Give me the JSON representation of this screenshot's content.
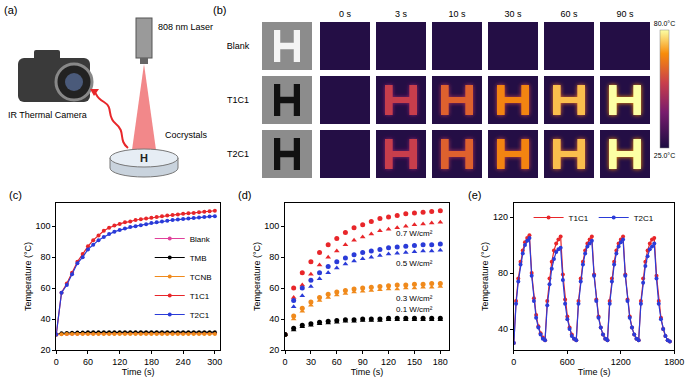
{
  "schematic": {
    "label": "(a)",
    "laser": "808 nm Laser",
    "camera": "IR Thermal Camera",
    "sample": "Cocrystals",
    "letter": "H"
  },
  "thermal_images": {
    "label": "(b)",
    "rows": [
      "Blank",
      "T1C1",
      "T2C1"
    ],
    "times": [
      "0 s",
      "3 s",
      "10 s",
      "30 s",
      "60 s",
      "90 s"
    ],
    "colorbar_labels": [
      "80.0°C",
      "25.0°C"
    ]
  },
  "chart_data": [
    {
      "type": "line",
      "title": "(c)",
      "x_label": "Time (s)",
      "y_label": "Temperature (°C)",
      "x": [
        0,
        10,
        20,
        30,
        40,
        50,
        60,
        70,
        80,
        90,
        100,
        110,
        120,
        130,
        140,
        150,
        160,
        170,
        180,
        190,
        200,
        210,
        220,
        230,
        240,
        250,
        260,
        270,
        280,
        290,
        300
      ],
      "series": [
        {
          "name": "Blank",
          "color": "#e0409a",
          "marker": "circle",
          "values": [
            30,
            30.3,
            30.4,
            30.5,
            30.5,
            30.6,
            30.6,
            30.6,
            30.7,
            30.7,
            30.7,
            30.7,
            30.8,
            30.8,
            30.8,
            30.8,
            30.8,
            30.8,
            30.8,
            30.8,
            30.8,
            30.8,
            30.8,
            30.8,
            30.8,
            30.8,
            30.8,
            30.8,
            30.8,
            30.8,
            30.8
          ]
        },
        {
          "name": "TMB",
          "color": "#000000",
          "marker": "circle",
          "values": [
            30,
            30.8,
            31,
            31.2,
            31.3,
            31.3,
            31.4,
            31.4,
            31.4,
            31.5,
            31.5,
            31.5,
            31.5,
            31.5,
            31.5,
            31.5,
            31.5,
            31.5,
            31.5,
            31.5,
            31.5,
            31.5,
            31.5,
            31.5,
            31.5,
            31.5,
            31.5,
            31.5,
            31.5,
            31.5,
            31.5
          ]
        },
        {
          "name": "TCNB",
          "color": "#f08a1c",
          "marker": "circle",
          "values": [
            30,
            30.2,
            30.3,
            30.3,
            30.4,
            30.4,
            30.4,
            30.4,
            30.4,
            30.4,
            30.4,
            30.4,
            30.4,
            30.4,
            30.4,
            30.4,
            30.4,
            30.4,
            30.4,
            30.4,
            30.4,
            30.4,
            30.4,
            30.4,
            30.4,
            30.4,
            30.4,
            30.4,
            30.4,
            30.4,
            30.4
          ]
        },
        {
          "name": "T1C1",
          "color": "#e8262a",
          "marker": "circle",
          "values": [
            30,
            57,
            63,
            70,
            77,
            82,
            87,
            91,
            94,
            97,
            99,
            100.5,
            101.5,
            102.5,
            103,
            104,
            104.5,
            105,
            105.5,
            106,
            106.5,
            107,
            107.3,
            107.6,
            108,
            108.3,
            108.6,
            109,
            109.3,
            109.6,
            110
          ]
        },
        {
          "name": "T2C1",
          "color": "#2a3bd8",
          "marker": "circle",
          "values": [
            30,
            57,
            62,
            69,
            76,
            80,
            85,
            88,
            91,
            93,
            95,
            96.5,
            97.5,
            98.5,
            99.5,
            100,
            100.7,
            101.3,
            102,
            102.5,
            103,
            103.5,
            104,
            104.3,
            104.6,
            105,
            105.3,
            105.6,
            106,
            106.2,
            106.5
          ]
        }
      ],
      "xlim": [
        0,
        310
      ],
      "xticks": [
        0,
        60,
        120,
        180,
        240,
        300
      ],
      "ylim": [
        20,
        115
      ],
      "yticks": [
        20,
        40,
        60,
        80,
        100
      ],
      "grid": false,
      "legend": "right"
    },
    {
      "type": "scatter",
      "title": "(d)",
      "x_label": "Time (s)",
      "y_label": "Temperature (°C)",
      "x": [
        0,
        10,
        20,
        30,
        40,
        50,
        60,
        70,
        80,
        90,
        100,
        110,
        120,
        130,
        140,
        150,
        160,
        170,
        180
      ],
      "series": [
        {
          "color": "#e8262a",
          "marker": "circle",
          "values": [
            30,
            60,
            70,
            77,
            83,
            88,
            92,
            96,
            99,
            101,
            103,
            105,
            106,
            107,
            108,
            108.5,
            109,
            109.5,
            110
          ]
        },
        {
          "color": "#e8262a",
          "marker": "triangle",
          "values": [
            30,
            54,
            62,
            69,
            75,
            80,
            84,
            88,
            91,
            93,
            95,
            97,
            98,
            99,
            100,
            101,
            101.5,
            102,
            102.5
          ]
        },
        {
          "color": "#2a3bd8",
          "marker": "circle",
          "values": [
            30,
            52,
            60,
            65,
            70,
            74,
            77,
            79.5,
            81.5,
            83,
            84,
            85,
            86,
            86.5,
            87,
            87.5,
            88,
            88,
            88.5
          ]
        },
        {
          "color": "#2a3bd8",
          "marker": "triangle",
          "values": [
            30,
            48,
            55,
            61,
            66,
            70,
            73,
            75.5,
            77.5,
            79,
            80,
            81,
            82,
            82.5,
            83,
            83.5,
            84,
            84,
            84.5
          ]
        },
        {
          "color": "#f08a1c",
          "marker": "circle",
          "values": [
            30,
            42,
            47,
            51,
            54,
            56,
            57.5,
            58.5,
            59.5,
            60,
            60.5,
            61,
            61.5,
            62,
            62,
            62.5,
            62.5,
            63,
            63
          ]
        },
        {
          "color": "#f08a1c",
          "marker": "triangle",
          "values": [
            30,
            40,
            45,
            49,
            52,
            54,
            55.5,
            56.5,
            57.5,
            58,
            58.5,
            59,
            59.5,
            59.5,
            60,
            60,
            60.5,
            60.5,
            61
          ]
        },
        {
          "color": "#000000",
          "marker": "circle",
          "values": [
            30,
            34,
            36,
            37,
            38,
            38.5,
            39,
            39.5,
            39.5,
            40,
            40,
            40,
            40.5,
            40.5,
            40.5,
            40.5,
            40.5,
            40.5,
            40.5
          ]
        },
        {
          "color": "#000000",
          "marker": "triangle",
          "values": [
            30,
            33,
            35,
            36,
            37,
            37.5,
            38,
            38.5,
            38.5,
            39,
            39,
            39,
            39.5,
            39.5,
            39.5,
            39.5,
            39.5,
            39.5,
            39.5
          ]
        }
      ],
      "annotations": [
        {
          "text": "0.7 W/cm²",
          "x": 150,
          "y": 95
        },
        {
          "text": "0.5 W/cm²",
          "x": 150,
          "y": 76
        },
        {
          "text": "0.3 W/cm²",
          "x": 150,
          "y": 53
        },
        {
          "text": "0.1 W/cm²",
          "x": 150,
          "y": 46
        }
      ],
      "xlim": [
        0,
        190
      ],
      "xticks": [
        0,
        30,
        60,
        90,
        120,
        150,
        180
      ],
      "ylim": [
        20,
        115
      ],
      "yticks": [
        20,
        40,
        60,
        80,
        100
      ],
      "grid": false
    },
    {
      "type": "line",
      "title": "(e)",
      "x_label": "Time (s)",
      "y_label": "Temperature (°C)",
      "x": [
        0,
        25,
        50,
        75,
        100,
        125,
        150,
        175,
        200,
        225,
        250,
        275,
        300,
        325,
        350,
        375,
        400,
        425,
        450,
        475,
        500,
        525,
        550,
        575,
        600,
        625,
        650,
        675,
        700,
        725,
        750,
        775,
        800,
        825,
        850,
        875,
        900,
        925,
        950,
        975,
        1000,
        1025,
        1050,
        1075,
        1100,
        1125,
        1150,
        1175,
        1200,
        1225,
        1250,
        1275,
        1300,
        1325,
        1350,
        1375,
        1400,
        1425,
        1450,
        1475,
        1500,
        1525,
        1550,
        1575,
        1600,
        1625,
        1650,
        1675,
        1700,
        1725,
        1750
      ],
      "series": [
        {
          "name": "T1C1",
          "color": "#e8262a",
          "marker": "circle",
          "values": [
            30,
            60,
            76,
            88,
            96,
            102,
            105,
            107,
            80,
            62,
            50,
            42,
            37,
            34,
            32,
            60,
            76,
            88,
            96,
            101,
            104,
            106,
            79,
            61,
            49,
            41,
            36,
            33,
            32,
            60,
            76,
            88,
            96,
            101,
            104,
            106,
            79,
            61,
            49,
            41,
            36,
            33,
            32,
            60,
            76,
            88,
            96,
            101,
            104,
            106,
            79,
            61,
            49,
            41,
            36,
            33,
            32,
            60,
            76,
            88,
            96,
            101,
            104,
            105,
            78,
            60,
            48,
            40,
            35,
            32,
            31
          ]
        },
        {
          "name": "T2C1",
          "color": "#2a3bd8",
          "marker": "circle",
          "values": [
            30,
            58,
            74,
            86,
            94,
            100,
            103,
            105,
            78,
            60,
            48,
            41,
            36,
            33,
            32,
            57,
            72,
            83,
            90,
            95,
            97,
            98,
            75,
            58,
            47,
            40,
            35,
            33,
            32,
            58,
            74,
            86,
            94,
            99,
            101,
            103,
            78,
            60,
            48,
            41,
            36,
            33,
            32,
            58,
            74,
            86,
            94,
            99,
            102,
            104,
            78,
            60,
            48,
            41,
            36,
            33,
            32,
            58,
            73,
            85,
            92,
            97,
            99,
            101,
            76,
            58,
            47,
            40,
            35,
            32,
            31
          ]
        }
      ],
      "xlim": [
        0,
        1800
      ],
      "xticks": [
        0,
        600,
        1200,
        1800
      ],
      "ylim": [
        25,
        130
      ],
      "yticks": [
        40,
        80,
        120
      ],
      "grid": false,
      "legend": "top"
    }
  ]
}
